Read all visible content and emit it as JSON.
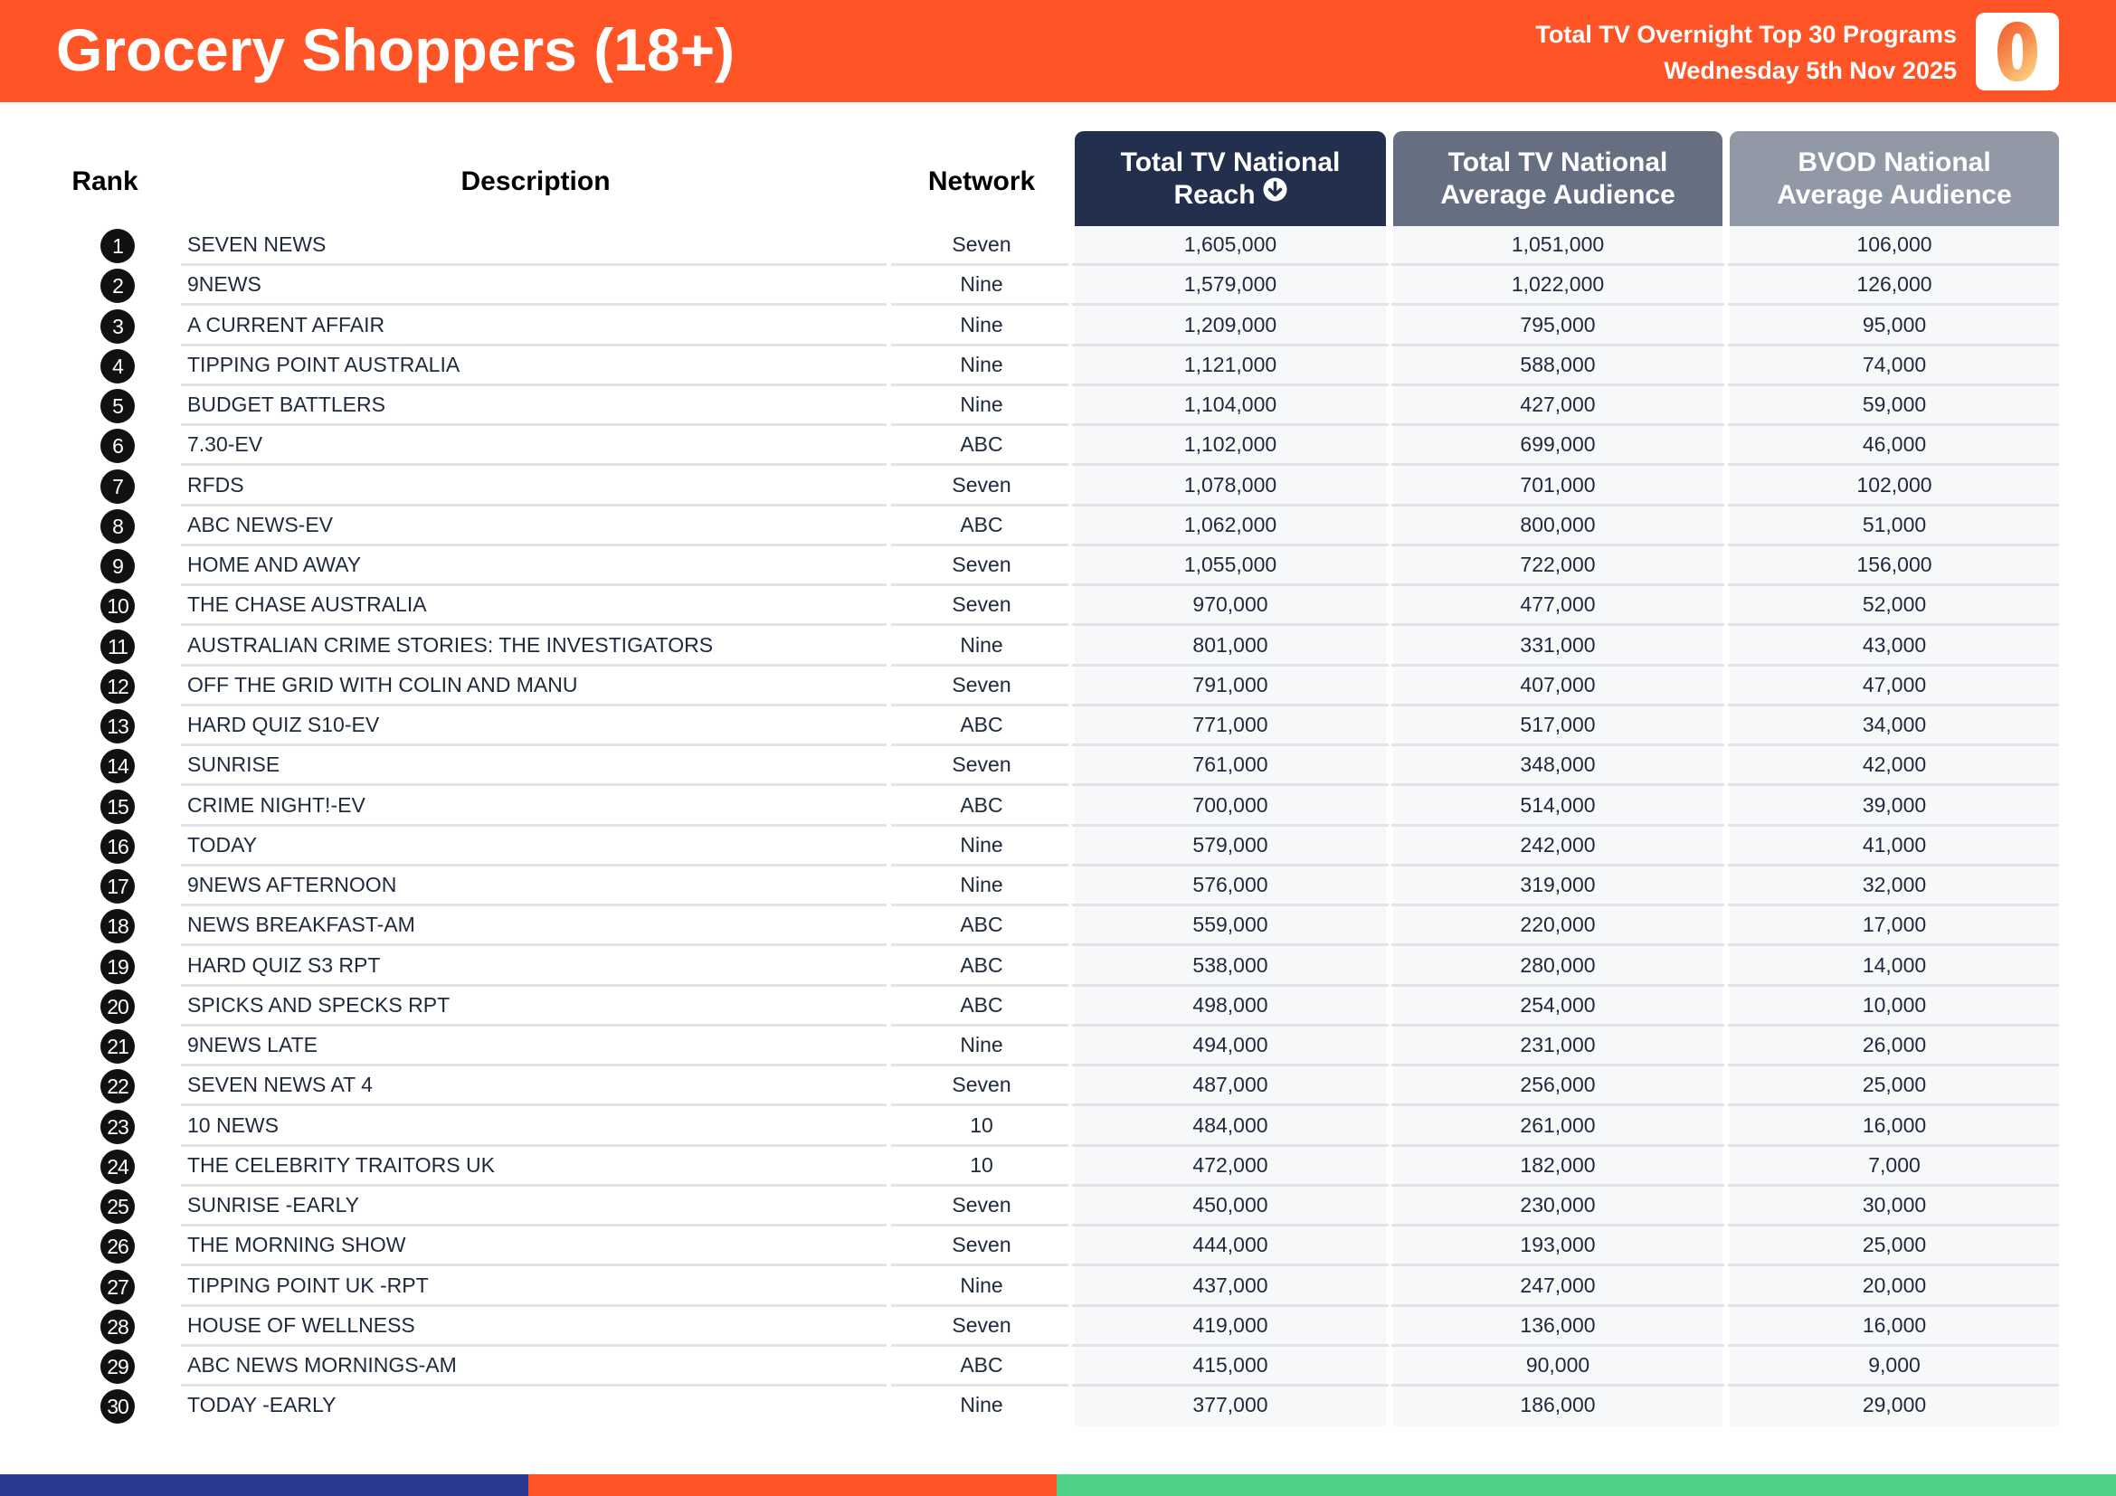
{
  "header": {
    "title": "Grocery Shoppers (18+)",
    "subtitle_line1": "Total TV Overnight Top 30 Programs",
    "subtitle_line2": "Wednesday 5th Nov 2025",
    "logo_icon": "oztam-zero-logo",
    "brand_color": "#FF5526"
  },
  "table": {
    "columns": {
      "rank": "Rank",
      "description": "Description",
      "network": "Network",
      "reach_line1": "Total TV National",
      "reach_line2": "Reach",
      "avg_line1": "Total TV National",
      "avg_line2": "Average Audience",
      "bvod_line1": "BVOD National",
      "bvod_line2": "Average Audience"
    },
    "sort_icon": "arrow-down-circle-icon",
    "rows": [
      {
        "rank": "1",
        "description": "SEVEN NEWS",
        "network": "Seven",
        "reach": "1,605,000",
        "avg": "1,051,000",
        "bvod": "106,000"
      },
      {
        "rank": "2",
        "description": "9NEWS",
        "network": "Nine",
        "reach": "1,579,000",
        "avg": "1,022,000",
        "bvod": "126,000"
      },
      {
        "rank": "3",
        "description": "A CURRENT AFFAIR",
        "network": "Nine",
        "reach": "1,209,000",
        "avg": "795,000",
        "bvod": "95,000"
      },
      {
        "rank": "4",
        "description": "TIPPING POINT AUSTRALIA",
        "network": "Nine",
        "reach": "1,121,000",
        "avg": "588,000",
        "bvod": "74,000"
      },
      {
        "rank": "5",
        "description": "BUDGET BATTLERS",
        "network": "Nine",
        "reach": "1,104,000",
        "avg": "427,000",
        "bvod": "59,000"
      },
      {
        "rank": "6",
        "description": "7.30-EV",
        "network": "ABC",
        "reach": "1,102,000",
        "avg": "699,000",
        "bvod": "46,000"
      },
      {
        "rank": "7",
        "description": "RFDS",
        "network": "Seven",
        "reach": "1,078,000",
        "avg": "701,000",
        "bvod": "102,000"
      },
      {
        "rank": "8",
        "description": "ABC NEWS-EV",
        "network": "ABC",
        "reach": "1,062,000",
        "avg": "800,000",
        "bvod": "51,000"
      },
      {
        "rank": "9",
        "description": "HOME AND AWAY",
        "network": "Seven",
        "reach": "1,055,000",
        "avg": "722,000",
        "bvod": "156,000"
      },
      {
        "rank": "10",
        "description": "THE CHASE AUSTRALIA",
        "network": "Seven",
        "reach": "970,000",
        "avg": "477,000",
        "bvod": "52,000"
      },
      {
        "rank": "11",
        "description": "AUSTRALIAN CRIME STORIES: THE INVESTIGATORS",
        "network": "Nine",
        "reach": "801,000",
        "avg": "331,000",
        "bvod": "43,000"
      },
      {
        "rank": "12",
        "description": "OFF THE GRID WITH COLIN AND MANU",
        "network": "Seven",
        "reach": "791,000",
        "avg": "407,000",
        "bvod": "47,000"
      },
      {
        "rank": "13",
        "description": "HARD QUIZ S10-EV",
        "network": "ABC",
        "reach": "771,000",
        "avg": "517,000",
        "bvod": "34,000"
      },
      {
        "rank": "14",
        "description": "SUNRISE",
        "network": "Seven",
        "reach": "761,000",
        "avg": "348,000",
        "bvod": "42,000"
      },
      {
        "rank": "15",
        "description": "CRIME NIGHT!-EV",
        "network": "ABC",
        "reach": "700,000",
        "avg": "514,000",
        "bvod": "39,000"
      },
      {
        "rank": "16",
        "description": "TODAY",
        "network": "Nine",
        "reach": "579,000",
        "avg": "242,000",
        "bvod": "41,000"
      },
      {
        "rank": "17",
        "description": "9NEWS AFTERNOON",
        "network": "Nine",
        "reach": "576,000",
        "avg": "319,000",
        "bvod": "32,000"
      },
      {
        "rank": "18",
        "description": "NEWS BREAKFAST-AM",
        "network": "ABC",
        "reach": "559,000",
        "avg": "220,000",
        "bvod": "17,000"
      },
      {
        "rank": "19",
        "description": "HARD QUIZ S3 RPT",
        "network": "ABC",
        "reach": "538,000",
        "avg": "280,000",
        "bvod": "14,000"
      },
      {
        "rank": "20",
        "description": "SPICKS AND SPECKS RPT",
        "network": "ABC",
        "reach": "498,000",
        "avg": "254,000",
        "bvod": "10,000"
      },
      {
        "rank": "21",
        "description": "9NEWS LATE",
        "network": "Nine",
        "reach": "494,000",
        "avg": "231,000",
        "bvod": "26,000"
      },
      {
        "rank": "22",
        "description": "SEVEN NEWS AT 4",
        "network": "Seven",
        "reach": "487,000",
        "avg": "256,000",
        "bvod": "25,000"
      },
      {
        "rank": "23",
        "description": "10 NEWS",
        "network": "10",
        "reach": "484,000",
        "avg": "261,000",
        "bvod": "16,000"
      },
      {
        "rank": "24",
        "description": "THE CELEBRITY TRAITORS UK",
        "network": "10",
        "reach": "472,000",
        "avg": "182,000",
        "bvod": "7,000"
      },
      {
        "rank": "25",
        "description": "SUNRISE -EARLY",
        "network": "Seven",
        "reach": "450,000",
        "avg": "230,000",
        "bvod": "30,000"
      },
      {
        "rank": "26",
        "description": "THE MORNING SHOW",
        "network": "Seven",
        "reach": "444,000",
        "avg": "193,000",
        "bvod": "25,000"
      },
      {
        "rank": "27",
        "description": "TIPPING POINT UK -RPT",
        "network": "Nine",
        "reach": "437,000",
        "avg": "247,000",
        "bvod": "20,000"
      },
      {
        "rank": "28",
        "description": "HOUSE OF WELLNESS",
        "network": "Seven",
        "reach": "419,000",
        "avg": "136,000",
        "bvod": "16,000"
      },
      {
        "rank": "29",
        "description": "ABC NEWS MORNINGS-AM",
        "network": "ABC",
        "reach": "415,000",
        "avg": "90,000",
        "bvod": "9,000"
      },
      {
        "rank": "30",
        "description": "TODAY -EARLY",
        "network": "Nine",
        "reach": "377,000",
        "avg": "186,000",
        "bvod": "29,000"
      }
    ]
  },
  "colors": {
    "header_reach": "#23304D",
    "header_avg": "#666F82",
    "header_bvod": "#9299A6",
    "footer_blue": "#2B3990",
    "footer_orange": "#FF5526",
    "footer_green": "#4ED28A"
  }
}
